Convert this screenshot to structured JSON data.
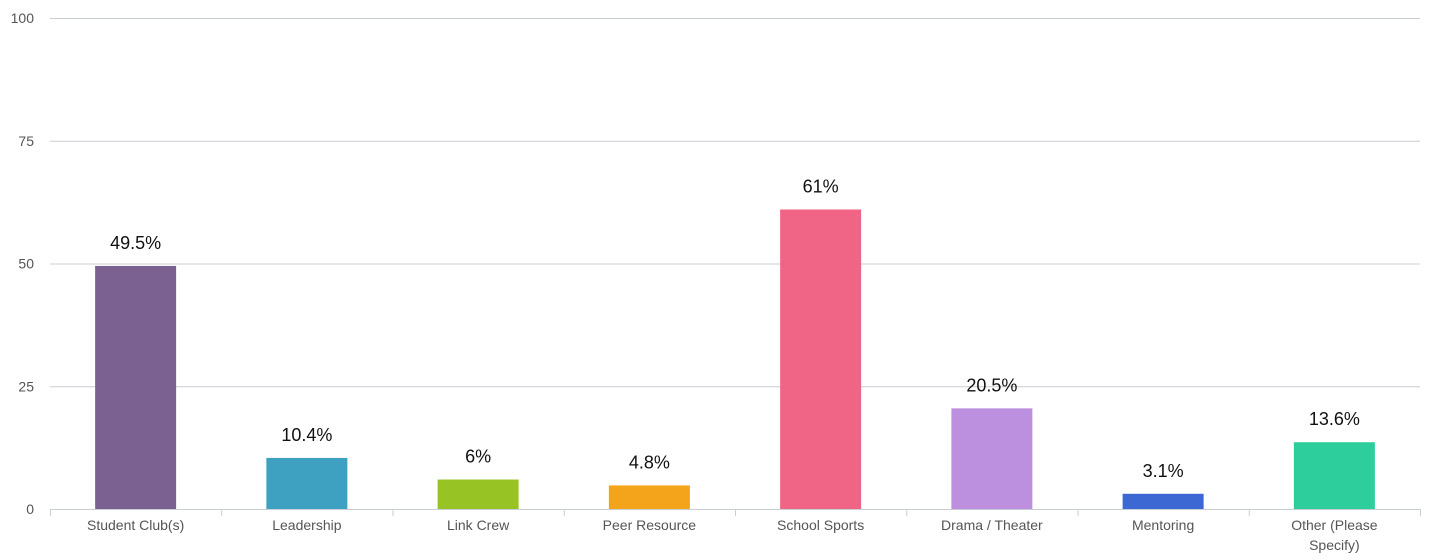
{
  "chart_data": {
    "type": "bar",
    "title": "",
    "xlabel": "",
    "ylabel": "",
    "ylim": [
      0,
      100
    ],
    "yticks": [
      "0",
      "25",
      "50",
      "75",
      "100"
    ],
    "categories": [
      "Student Club(s)",
      "Leadership",
      "Link Crew",
      "Peer Resource",
      "School Sports",
      "Drama / Theater",
      "Mentoring",
      "Other (Please Specify)"
    ],
    "values": [
      49.5,
      10.4,
      6,
      4.8,
      61,
      20.5,
      3.1,
      13.6
    ],
    "data_labels": [
      "49.5%",
      "10.4%",
      "6%",
      "4.8%",
      "61%",
      "20.5%",
      "3.1%",
      "13.6%"
    ],
    "colors": [
      "#7b6191",
      "#3fa1c2",
      "#97c424",
      "#f4a41a",
      "#f06585",
      "#bd90df",
      "#3b68d2",
      "#2dce9c"
    ],
    "grid": true,
    "legend": "none"
  }
}
